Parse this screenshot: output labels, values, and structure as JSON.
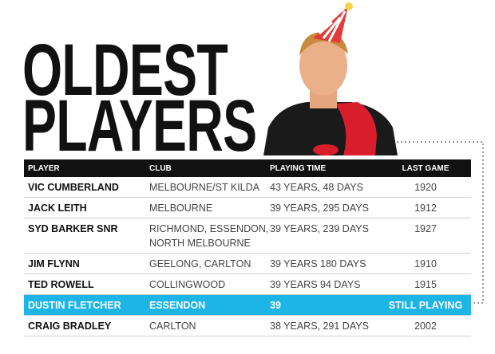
{
  "header": {
    "title_lines": [
      "OLDEST",
      "PLAYERS"
    ]
  },
  "table": {
    "columns": [
      "PLAYER",
      "CLUB",
      "PLAYING TIME",
      "LAST GAME"
    ],
    "rows": [
      [
        "VIC CUMBERLAND",
        "MELBOURNE/ST KILDA",
        "43 YEARS, 48 DAYS",
        "1920"
      ],
      [
        "JACK LEITH",
        "MELBOURNE",
        "39 YEARS, 295 DAYS",
        "1912"
      ],
      [
        "SYD BARKER SNR",
        "RICHMOND, ESSENDON,\nNORTH MELBOURNE",
        "39 YEARS, 239 DAYS",
        "1927"
      ],
      [
        "JIM FLYNN",
        "GEELONG, CARLTON",
        "39 YEARS 180 DAYS",
        "1910"
      ],
      [
        "TED ROWELL",
        "COLLINGWOOD",
        "39 YEARS 94 DAYS",
        "1915"
      ],
      [
        "DUSTIN FLETCHER",
        "ESSENDON",
        "39",
        "STILL PLAYING"
      ],
      [
        "CRAIG BRADLEY",
        "CARLTON",
        "38 YEARS, 291 DAYS",
        "2002"
      ]
    ],
    "highlight_row": 5,
    "highlight_color": "#1db4e6"
  }
}
